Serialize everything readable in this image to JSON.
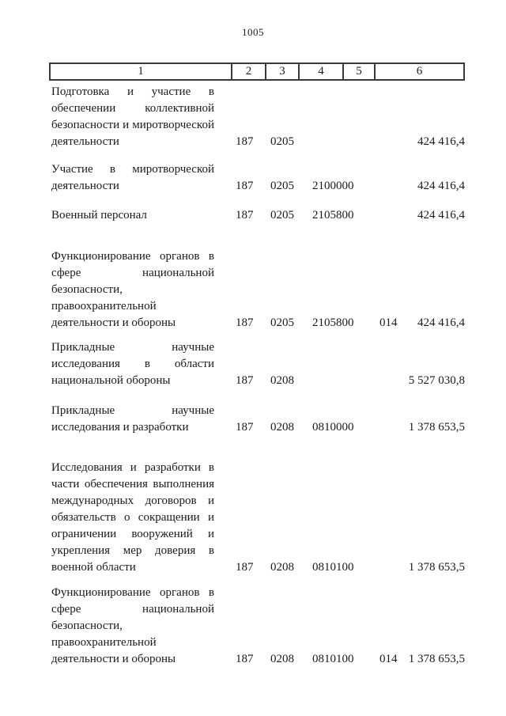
{
  "page_number": "1005",
  "table": {
    "header_columns": [
      "1",
      "2",
      "3",
      "4",
      "5",
      "6"
    ],
    "rows": [
      {
        "name": "Подготовка и участие в обеспечении коллективной безопасности и миротворческой деятельности",
        "agency": "187",
        "section": "0205",
        "target_item": "",
        "expense_type": "",
        "amount": "424 416,4"
      },
      {
        "name": "Участие в миротворческой деятельности",
        "agency": "187",
        "section": "0205",
        "target_item": "2100000",
        "expense_type": "",
        "amount": "424 416,4"
      },
      {
        "name": "Военный персонал",
        "agency": "187",
        "section": "0205",
        "target_item": "2105800",
        "expense_type": "",
        "amount": "424 416,4"
      },
      {
        "name": "Функционирование органов в сфере национальной безопасности, правоохранительной деятельности и обороны",
        "agency": "187",
        "section": "0205",
        "target_item": "2105800",
        "expense_type": "014",
        "amount": "424 416,4"
      },
      {
        "name": "Прикладные научные исследования в области национальной обороны",
        "agency": "187",
        "section": "0208",
        "target_item": "",
        "expense_type": "",
        "amount": "5 527 030,8"
      },
      {
        "name": "Прикладные научные исследования и разработки",
        "agency": "187",
        "section": "0208",
        "target_item": "0810000",
        "expense_type": "",
        "amount": "1 378 653,5"
      },
      {
        "name": "Исследования и разработки в части обеспечения выполнения международных договоров и обязательств о сокращении и ограничении вооружений и укрепления мер доверия в военной области",
        "agency": "187",
        "section": "0208",
        "target_item": "0810100",
        "expense_type": "",
        "amount": "1 378 653,5"
      },
      {
        "name": "Функционирование органов в сфере национальной безопасности, правоохранительной деятельности и обороны",
        "agency": "187",
        "section": "0208",
        "target_item": "0810100",
        "expense_type": "014",
        "amount": "1 378 653,5"
      }
    ]
  }
}
